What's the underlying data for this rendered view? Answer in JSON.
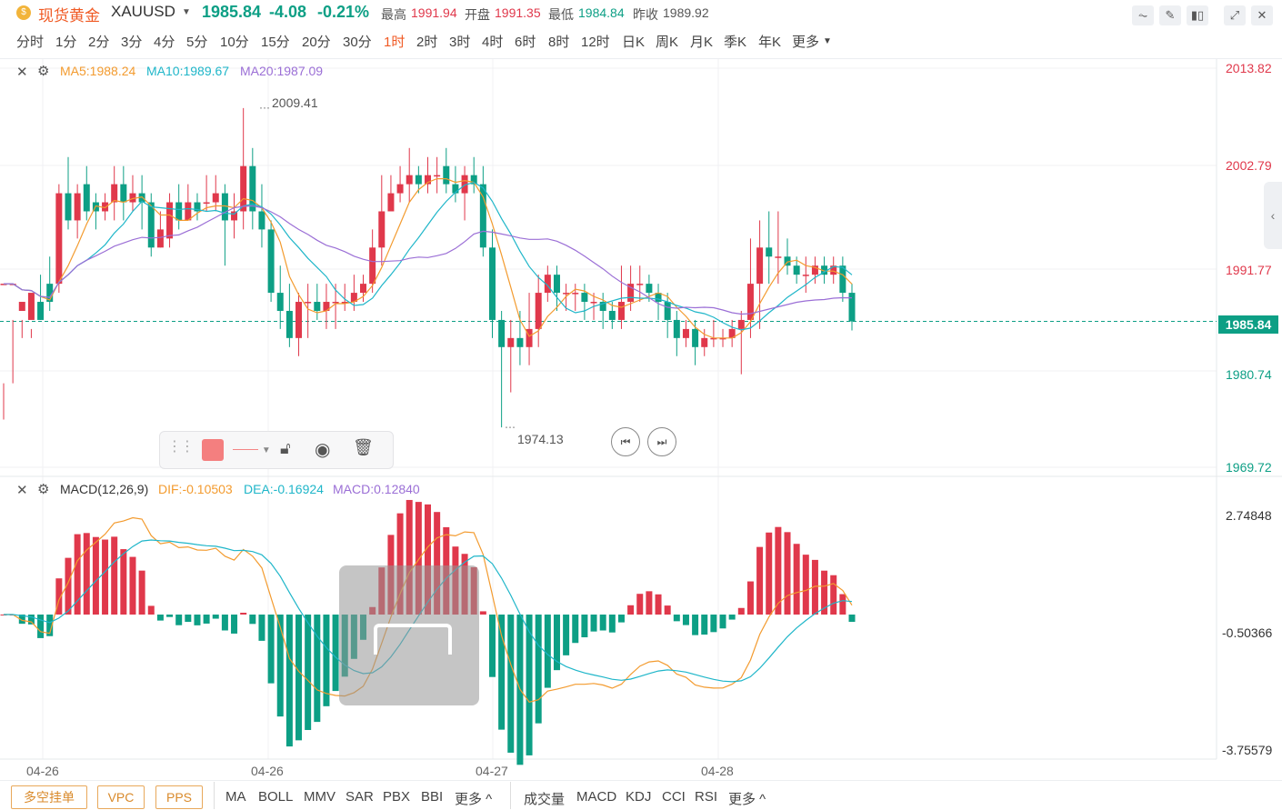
{
  "header": {
    "symbol_name": "现货黄金",
    "symbol_code": "XAUUSD",
    "price": "1985.84",
    "change": "-4.08",
    "change_pct": "-0.21%",
    "high_label": "最高",
    "high": "1991.94",
    "open_label": "开盘",
    "open": "1991.35",
    "low_label": "最低",
    "low": "1984.84",
    "prev_label": "昨收",
    "prev": "1989.92"
  },
  "timeframes": [
    "分时",
    "1分",
    "2分",
    "3分",
    "4分",
    "5分",
    "10分",
    "15分",
    "20分",
    "30分",
    "1时",
    "2时",
    "3时",
    "4时",
    "6时",
    "8时",
    "12时",
    "日K",
    "周K",
    "月K",
    "季K",
    "年K",
    "更多"
  ],
  "active_timeframe": "1时",
  "top_buttons": [
    "line-chart-icon",
    "draw-icon",
    "candle-icon",
    "expand-icon",
    "close-icon"
  ],
  "ma_legend": {
    "ma5": "MA5:1988.24",
    "ma10": "MA10:1989.67",
    "ma20": "MA20:1987.09"
  },
  "macd_legend": {
    "title": "MACD(12,26,9)",
    "dif": "DIF:-0.10503",
    "dea": "DEA:-0.16924",
    "macd": "MACD:0.12840"
  },
  "price_axis": [
    "2013.82",
    "2002.79",
    "1991.77",
    "1980.74",
    "1969.72"
  ],
  "current_price_tag": "1985.84",
  "macd_axis": [
    "2.74848",
    "-0.50366",
    "-3.75579"
  ],
  "annotations": {
    "high": "2009.41",
    "low": "1974.13"
  },
  "dates": [
    "04-26",
    "04-26",
    "04-27",
    "04-28"
  ],
  "bottom_tags": [
    "多空挂单",
    "VPC",
    "PPS"
  ],
  "main_indicators": [
    "MA",
    "BOLL",
    "MMV",
    "SAR",
    "PBX",
    "BBI",
    "更多 ^"
  ],
  "sub_indicators": [
    "成交量",
    "MACD",
    "KDJ",
    "CCI",
    "RSI",
    "更多 ^"
  ],
  "colors": {
    "up": "#e0384b",
    "down": "#0d9f85",
    "ma5": "#f39b2f",
    "ma10": "#1fb6c9",
    "ma20": "#9b6fd6",
    "accent": "#f05a24"
  },
  "chart_data": {
    "type": "candlestick",
    "price_range": [
      1969.72,
      2013.82
    ],
    "candles": [
      [
        1990,
        1990,
        1979,
        1975
      ],
      [
        1990,
        1990,
        1979,
        1986
      ],
      [
        1987,
        1988,
        1986,
        1984
      ],
      [
        1986,
        1989,
        1985,
        1984
      ],
      [
        1988,
        1986,
        1991,
        1986
      ],
      [
        1990,
        1988,
        1993,
        1987
      ],
      [
        1990,
        2000,
        2001,
        1989
      ],
      [
        2000,
        1997,
        2004,
        1996
      ],
      [
        1997,
        2000,
        2001,
        1995
      ],
      [
        2001,
        1998,
        2003,
        1997
      ],
      [
        1999,
        1998,
        2000,
        1996
      ],
      [
        1998,
        1999,
        2000,
        1997
      ],
      [
        1999,
        2001,
        2003,
        1997
      ],
      [
        2001,
        1999,
        2003,
        1997
      ],
      [
        1999,
        2000,
        2002,
        1998
      ],
      [
        2000,
        1999,
        2002,
        1996
      ],
      [
        1999,
        1994,
        2000,
        1993
      ],
      [
        1994,
        1996,
        1998,
        1994
      ],
      [
        1995,
        1999,
        2000,
        1994
      ],
      [
        1999,
        1997,
        2001,
        1996
      ],
      [
        1997,
        1999,
        2001,
        1997
      ],
      [
        1999,
        1998,
        2000,
        1997
      ],
      [
        1999,
        1999,
        2002,
        1998
      ],
      [
        1999,
        2000,
        2002,
        1998
      ],
      [
        2000,
        1997,
        2001,
        1992
      ],
      [
        1997,
        1998,
        2000,
        1995
      ],
      [
        1998,
        2003,
        2009.41,
        1996
      ],
      [
        2003,
        1998,
        2005,
        1996
      ],
      [
        1998,
        1996,
        2001,
        1994
      ],
      [
        1996,
        1989,
        1997,
        1988
      ],
      [
        1989,
        1987,
        1992,
        1985
      ],
      [
        1987,
        1984,
        1990,
        1983
      ],
      [
        1984,
        1988,
        1989,
        1982
      ],
      [
        1988,
        1988,
        1990,
        1984
      ],
      [
        1988,
        1987,
        1990,
        1986
      ],
      [
        1987,
        1988,
        1990,
        1985
      ],
      [
        1988,
        1988,
        1990,
        1985
      ],
      [
        1988,
        1988,
        1990,
        1987
      ],
      [
        1988,
        1989,
        1991,
        1987
      ],
      [
        1989,
        1990,
        1991,
        1988
      ],
      [
        1990,
        1994,
        1996,
        1989
      ],
      [
        1994,
        1998,
        2002,
        1992
      ],
      [
        1998,
        2000,
        2002,
        1998
      ],
      [
        2000,
        2001,
        2003,
        1999
      ],
      [
        2001,
        2002,
        2005,
        1999
      ],
      [
        2002,
        2001,
        2003,
        2000
      ],
      [
        2001,
        2002,
        2004,
        2000
      ],
      [
        2002,
        2002,
        2004,
        2000
      ],
      [
        2003,
        2001,
        2005,
        2000
      ],
      [
        2001,
        2000,
        2003,
        1999
      ],
      [
        2000,
        2002,
        2003,
        1997
      ],
      [
        2002,
        2001,
        2004,
        2000
      ],
      [
        2001,
        1994,
        2003,
        1993
      ],
      [
        1994,
        1986,
        1996,
        1984
      ],
      [
        1986,
        1983,
        1987,
        1974.13
      ],
      [
        1983,
        1984,
        1986,
        1978
      ],
      [
        1984,
        1983,
        1987,
        1981
      ],
      [
        1983,
        1985,
        1989,
        1981
      ],
      [
        1985,
        1989,
        1991,
        1983
      ],
      [
        1989,
        1991,
        1992,
        1988
      ],
      [
        1991,
        1989,
        1992,
        1987
      ],
      [
        1989,
        1989,
        1990,
        1987
      ],
      [
        1989,
        1989,
        1990,
        1987
      ],
      [
        1989,
        1988,
        1990,
        1986
      ],
      [
        1988,
        1988,
        1989,
        1986
      ],
      [
        1988,
        1987,
        1989,
        1985
      ],
      [
        1987,
        1986,
        1988,
        1985
      ],
      [
        1986,
        1988,
        1992,
        1985
      ],
      [
        1988,
        1990,
        1992,
        1987
      ],
      [
        1990,
        1990,
        1992,
        1988
      ],
      [
        1990,
        1989,
        1991,
        1988
      ],
      [
        1989,
        1988,
        1990,
        1986
      ],
      [
        1988,
        1986,
        1989,
        1984
      ],
      [
        1986,
        1984,
        1987,
        1982
      ],
      [
        1984,
        1985,
        1986,
        1983
      ],
      [
        1985,
        1983,
        1986,
        1981
      ],
      [
        1983,
        1984,
        1985,
        1982
      ],
      [
        1984,
        1984,
        1986,
        1983
      ],
      [
        1984,
        1984,
        1985,
        1983
      ],
      [
        1984,
        1985,
        1986,
        1983
      ],
      [
        1985,
        1986,
        1987,
        1980
      ],
      [
        1986,
        1990,
        1995,
        1984
      ],
      [
        1990,
        1994,
        1997,
        1985
      ],
      [
        1994,
        1993,
        1998,
        1990
      ],
      [
        1993,
        1993,
        1998,
        1990
      ],
      [
        1993,
        1992,
        1995,
        1991
      ],
      [
        1992,
        1991,
        1993,
        1990
      ],
      [
        1991,
        1991,
        1993,
        1989
      ],
      [
        1991,
        1992,
        1993,
        1990
      ],
      [
        1992,
        1991,
        1993,
        1990
      ],
      [
        1991,
        1992,
        1993,
        1990
      ],
      [
        1992,
        1989,
        1993,
        1988
      ],
      [
        1989,
        1985.84,
        1990,
        1984.84
      ]
    ],
    "macd_range": [
      -3.75579,
      2.74848
    ]
  }
}
